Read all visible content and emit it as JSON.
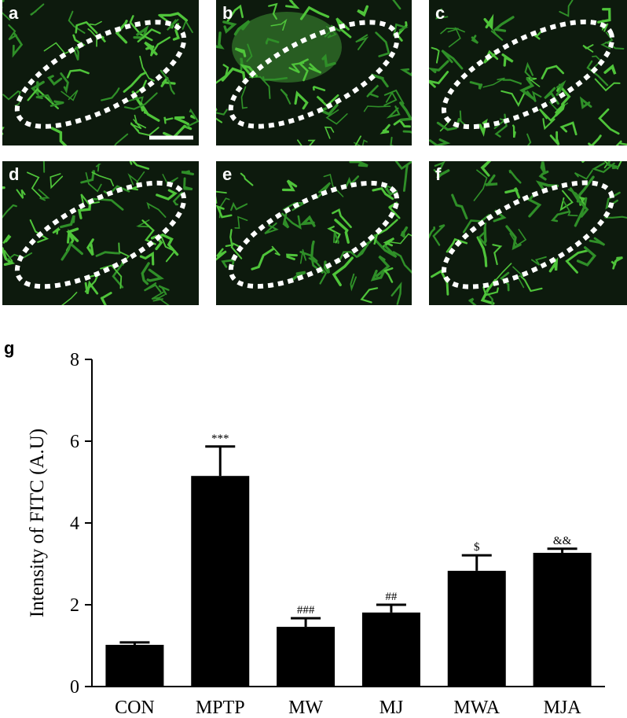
{
  "panels": [
    {
      "label": "a"
    },
    {
      "label": "b"
    },
    {
      "label": "c"
    },
    {
      "label": "d"
    },
    {
      "label": "e"
    },
    {
      "label": "f"
    }
  ],
  "chart_data": {
    "type": "bar",
    "panel_label": "g",
    "ylabel": "Intensity of FITC (A.U)",
    "categories": [
      "CON",
      "MPTP",
      "MW",
      "MJ",
      "MWA",
      "MJA"
    ],
    "values": [
      1.02,
      5.15,
      1.46,
      1.81,
      2.83,
      3.27
    ],
    "errors": [
      0.06,
      0.72,
      0.21,
      0.19,
      0.38,
      0.1
    ],
    "annotations": [
      null,
      "***",
      "###",
      "##",
      "$",
      "&&"
    ],
    "color": "#000000",
    "ylim": [
      0,
      8
    ],
    "yticks": [
      0,
      2,
      4,
      6,
      8
    ]
  }
}
